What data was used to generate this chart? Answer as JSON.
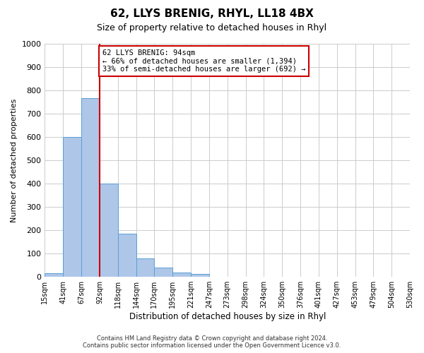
{
  "title": "62, LLYS BRENIG, RHYL, LL18 4BX",
  "subtitle": "Size of property relative to detached houses in Rhyl",
  "xlabel": "Distribution of detached houses by size in Rhyl",
  "ylabel": "Number of detached properties",
  "footer_lines": [
    "Contains HM Land Registry data © Crown copyright and database right 2024.",
    "Contains public sector information licensed under the Open Government Licence v3.0."
  ],
  "bin_labels": [
    "15sqm",
    "41sqm",
    "67sqm",
    "92sqm",
    "118sqm",
    "144sqm",
    "170sqm",
    "195sqm",
    "221sqm",
    "247sqm",
    "273sqm",
    "298sqm",
    "324sqm",
    "350sqm",
    "376sqm",
    "401sqm",
    "427sqm",
    "453sqm",
    "479sqm",
    "504sqm",
    "530sqm"
  ],
  "bar_values": [
    15,
    600,
    765,
    400,
    185,
    78,
    40,
    18,
    12,
    0,
    0,
    0,
    0,
    0,
    0,
    0,
    0,
    0,
    0,
    0
  ],
  "bar_color": "#aec6e8",
  "bar_edge_color": "#5a9fd4",
  "ylim": [
    0,
    1000
  ],
  "yticks": [
    0,
    100,
    200,
    300,
    400,
    500,
    600,
    700,
    800,
    900,
    1000
  ],
  "property_line_x": 3,
  "property_line_color": "#cc0000",
  "annotation_text": "62 LLYS BRENIG: 94sqm\n← 66% of detached houses are smaller (1,394)\n33% of semi-detached houses are larger (692) →",
  "annotation_box_color": "#ffffff",
  "annotation_box_edge": "#cc0000",
  "background_color": "#ffffff",
  "grid_color": "#cccccc"
}
